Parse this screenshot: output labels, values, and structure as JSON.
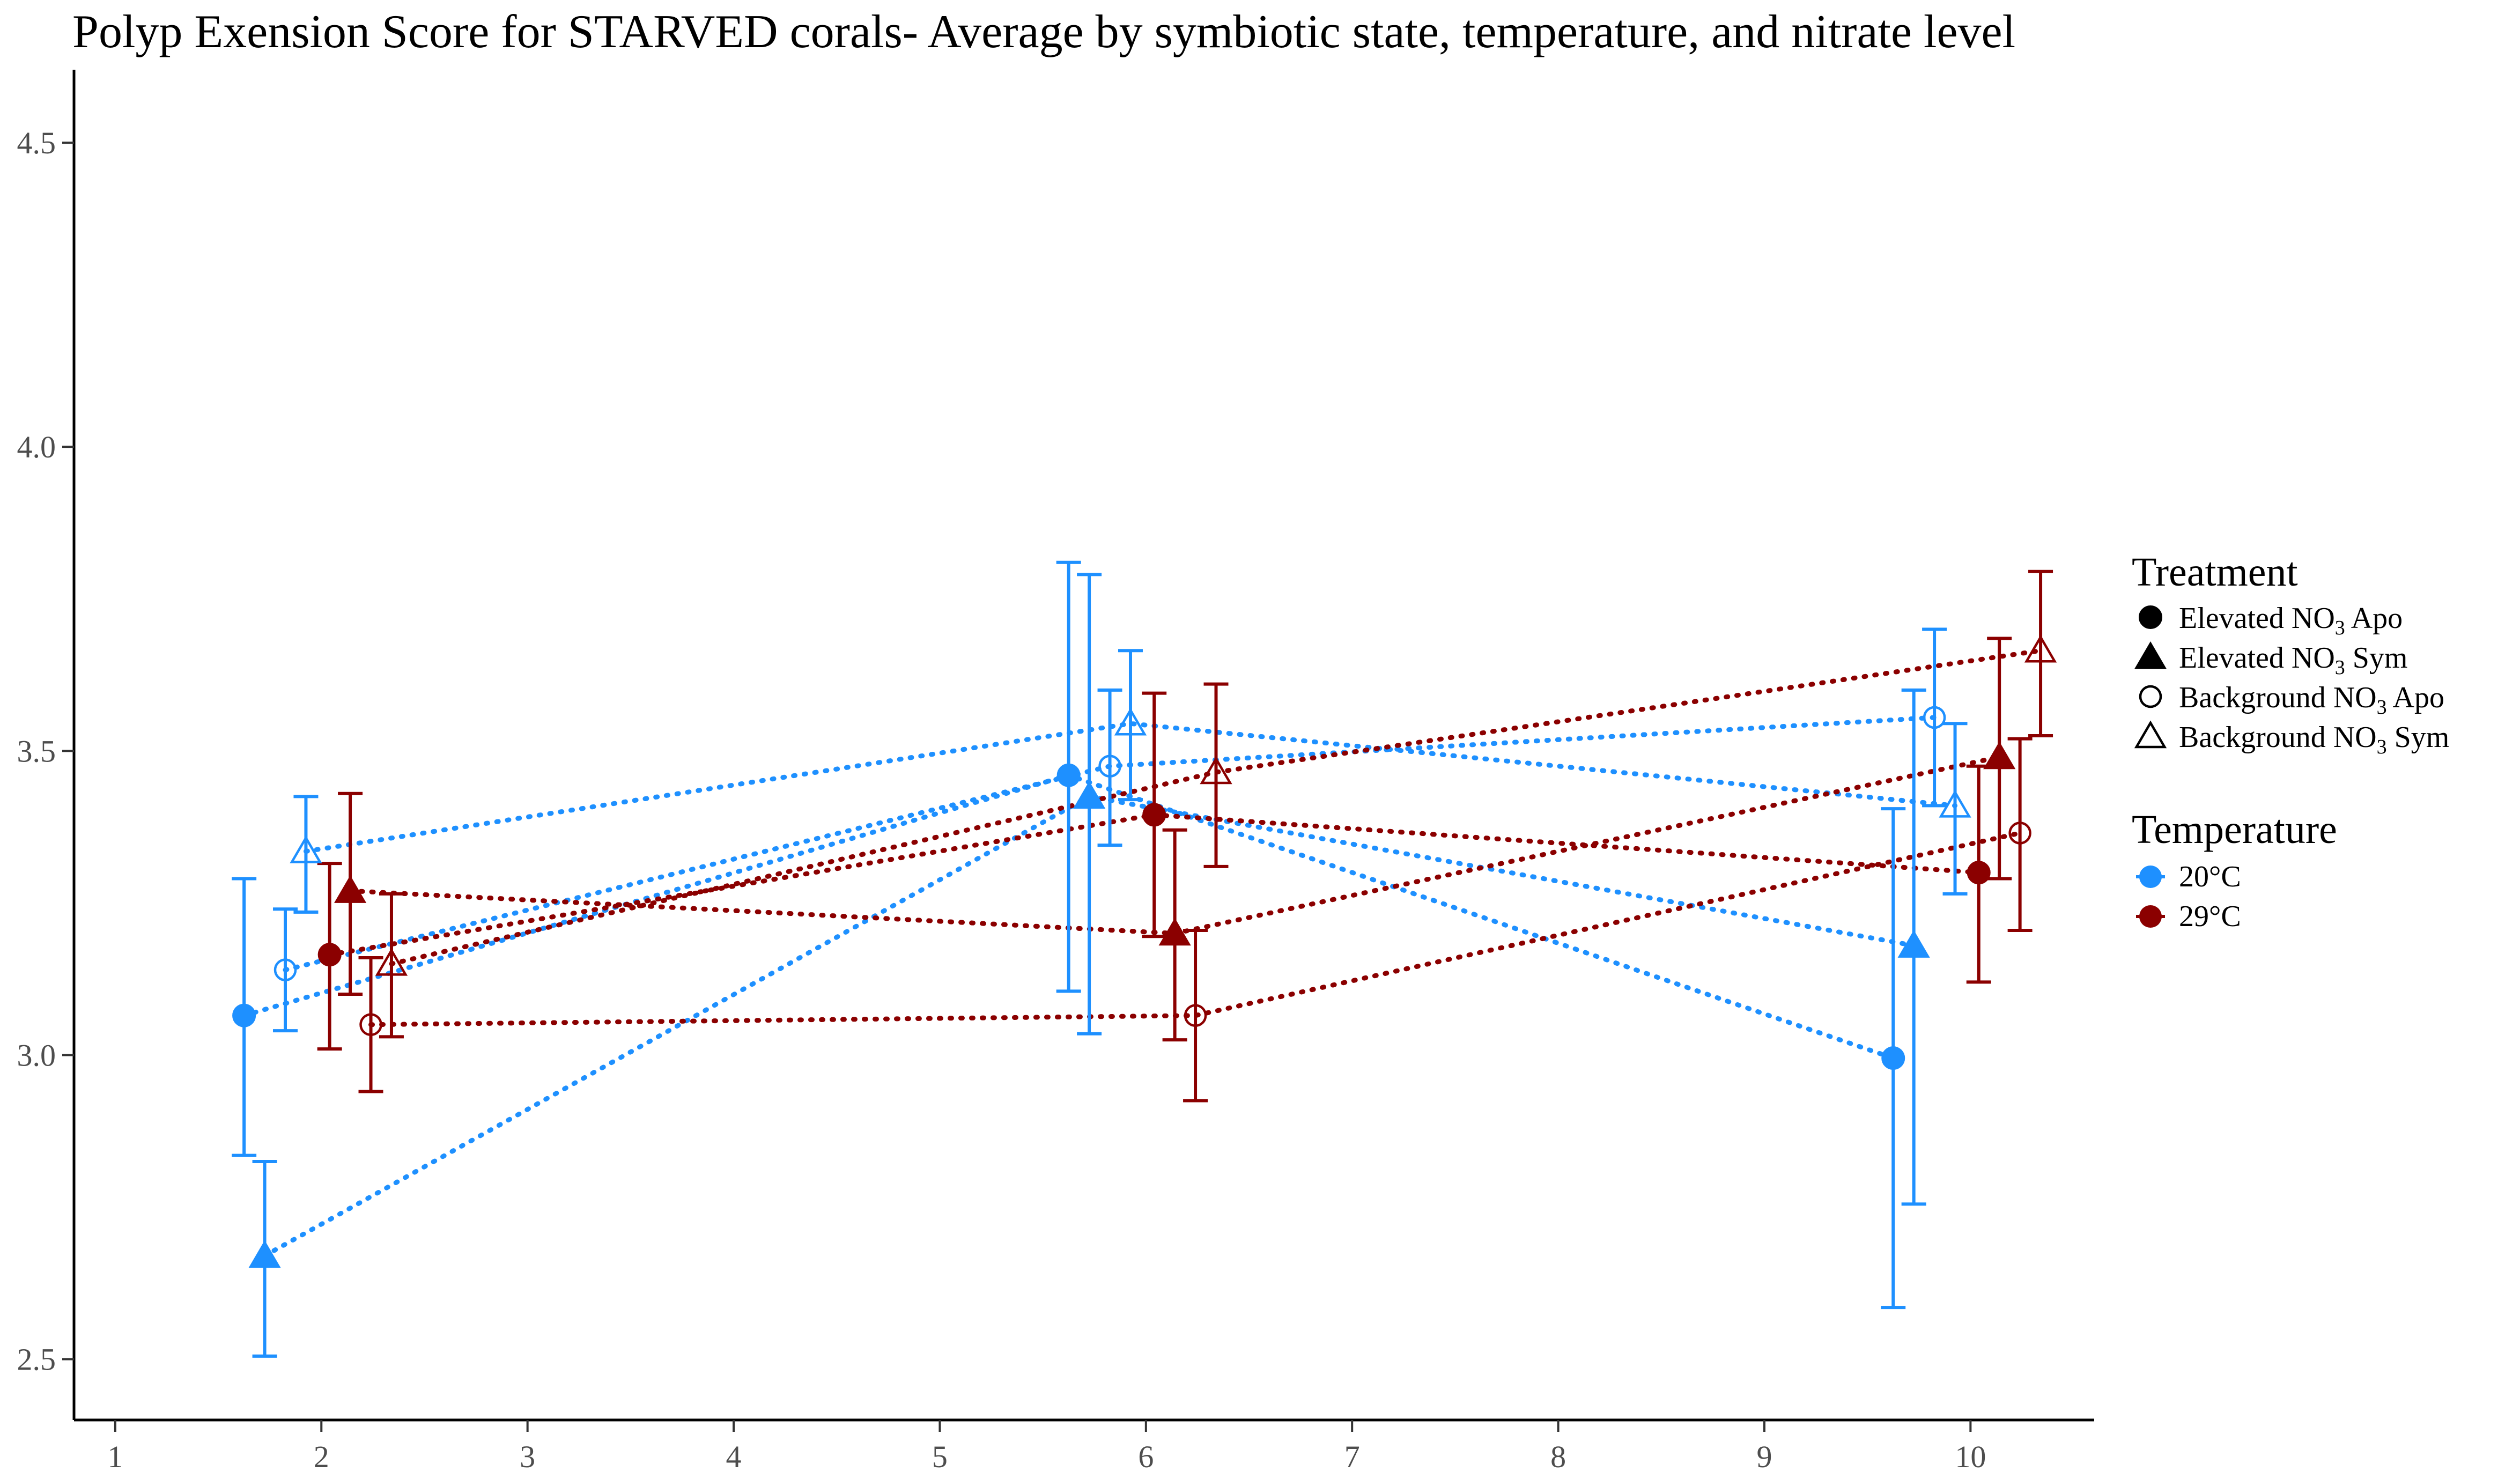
{
  "chart_data": {
    "type": "scatter",
    "title": "Polyp Exension Score for STARVED corals- Average by symbiotic state, temperature, and nitrate level",
    "xlabel": "",
    "ylabel": "",
    "xlim": [
      0.8,
      10.6
    ],
    "ylim": [
      2.4,
      4.62
    ],
    "xticks": [
      1,
      2,
      3,
      4,
      5,
      6,
      7,
      8,
      9,
      10
    ],
    "yticks": [
      2.5,
      3.0,
      3.5,
      4.0,
      4.5
    ],
    "ytick_labels": [
      "2.5",
      "3.0",
      "3.5",
      "4.0",
      "4.5"
    ],
    "grid": false,
    "legend_position": "right",
    "colors": {
      "20°C": "#1e90ff",
      "29°C": "#8b0000"
    },
    "series": [
      {
        "treatment": "Elevated NO3 Apo",
        "temperature": "20°C",
        "shape": "circle",
        "filled": true,
        "x": [
          1.625,
          5.625,
          9.625
        ],
        "y": [
          3.065,
          3.46,
          2.995
        ],
        "ymin": [
          2.835,
          3.105,
          2.585
        ],
        "ymax": [
          3.29,
          3.81,
          3.405
        ]
      },
      {
        "treatment": "Elevated NO3 Sym",
        "temperature": "20°C",
        "shape": "triangle",
        "filled": true,
        "x": [
          1.725,
          5.725,
          9.725
        ],
        "y": [
          2.67,
          3.425,
          3.18
        ],
        "ymin": [
          2.505,
          3.035,
          2.755
        ],
        "ymax": [
          2.825,
          3.79,
          3.6
        ]
      },
      {
        "treatment": "Background NO3 Apo",
        "temperature": "20°C",
        "shape": "circle",
        "filled": false,
        "x": [
          1.825,
          5.825,
          9.825
        ],
        "y": [
          3.14,
          3.475,
          3.555
        ],
        "ymin": [
          3.04,
          3.345,
          3.41
        ],
        "ymax": [
          3.24,
          3.6,
          3.7
        ]
      },
      {
        "treatment": "Background NO3 Sym",
        "temperature": "20°C",
        "shape": "triangle",
        "filled": false,
        "x": [
          1.925,
          5.925,
          9.925
        ],
        "y": [
          3.335,
          3.545,
          3.41
        ],
        "ymin": [
          3.235,
          3.42,
          3.265
        ],
        "ymax": [
          3.425,
          3.665,
          3.545
        ]
      },
      {
        "treatment": "Elevated NO3 Apo",
        "temperature": "29°C",
        "shape": "circle",
        "filled": true,
        "x": [
          2.04,
          6.04,
          10.04
        ],
        "y": [
          3.165,
          3.395,
          3.3
        ],
        "ymin": [
          3.01,
          3.195,
          3.12
        ],
        "ymax": [
          3.315,
          3.595,
          3.475
        ]
      },
      {
        "treatment": "Elevated NO3 Sym",
        "temperature": "29°C",
        "shape": "triangle",
        "filled": true,
        "x": [
          2.14,
          6.14,
          10.14
        ],
        "y": [
          3.27,
          3.2,
          3.49
        ],
        "ymin": [
          3.1,
          3.025,
          3.29
        ],
        "ymax": [
          3.43,
          3.37,
          3.685
        ]
      },
      {
        "treatment": "Background NO3 Apo",
        "temperature": "29°C",
        "shape": "circle",
        "filled": false,
        "x": [
          2.24,
          6.24,
          10.24
        ],
        "y": [
          3.05,
          3.065,
          3.365
        ],
        "ymin": [
          2.94,
          2.925,
          3.205
        ],
        "ymax": [
          3.16,
          3.205,
          3.52
        ]
      },
      {
        "treatment": "Background NO3 Sym",
        "temperature": "29°C",
        "shape": "triangle",
        "filled": false,
        "x": [
          2.34,
          6.34,
          10.34
        ],
        "y": [
          3.15,
          3.465,
          3.665
        ],
        "ymin": [
          3.03,
          3.31,
          3.525
        ],
        "ymax": [
          3.265,
          3.61,
          3.795
        ]
      }
    ]
  },
  "legend": {
    "treatment_title": "Treatment",
    "treatment_items": [
      {
        "label_main": "Elevated NO",
        "label_sub": "3",
        "label_tail": " Apo",
        "shape": "circle",
        "filled": true
      },
      {
        "label_main": "Elevated NO",
        "label_sub": "3",
        "label_tail": " Sym",
        "shape": "triangle",
        "filled": true
      },
      {
        "label_main": "Background NO",
        "label_sub": "3",
        "label_tail": " Apo",
        "shape": "circle",
        "filled": false
      },
      {
        "label_main": "Background NO",
        "label_sub": "3",
        "label_tail": " Sym",
        "shape": "triangle",
        "filled": false
      }
    ],
    "temperature_title": "Temperature",
    "temperature_items": [
      {
        "label": "20°C",
        "color": "#1e90ff"
      },
      {
        "label": "29°C",
        "color": "#8b0000"
      }
    ]
  }
}
